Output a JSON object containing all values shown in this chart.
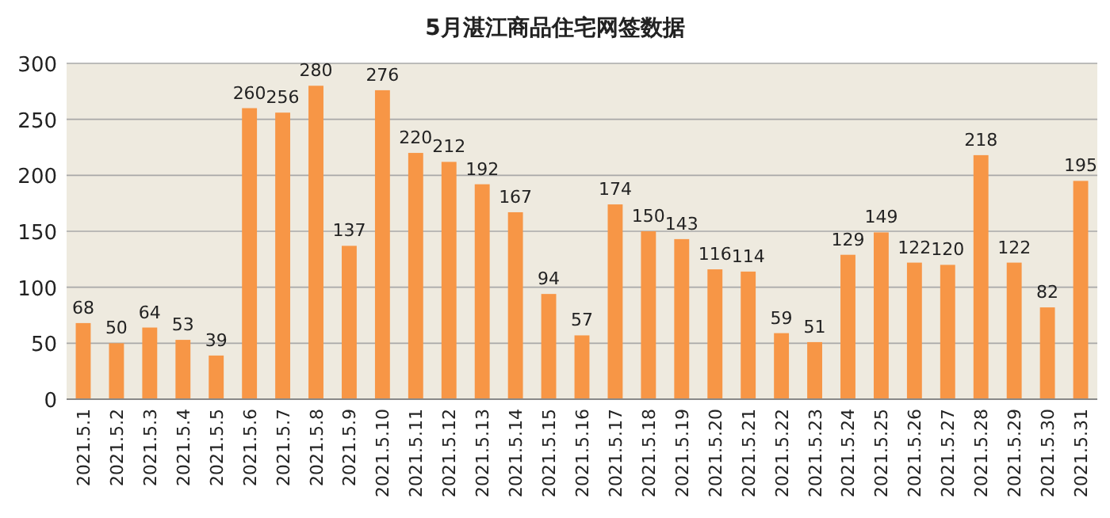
{
  "chart_data": {
    "type": "bar",
    "title": "5月湛江商品住宅网签数据",
    "categories": [
      "2021.5.1",
      "2021.5.2",
      "2021.5.3",
      "2021.5.4",
      "2021.5.5",
      "2021.5.6",
      "2021.5.7",
      "2021.5.8",
      "2021.5.9",
      "2021.5.10",
      "2021.5.11",
      "2021.5.12",
      "2021.5.13",
      "2021.5.14",
      "2021.5.15",
      "2021.5.16",
      "2021.5.17",
      "2021.5.18",
      "2021.5.19",
      "2021.5.20",
      "2021.5.21",
      "2021.5.22",
      "2021.5.23",
      "2021.5.24",
      "2021.5.25",
      "2021.5.26",
      "2021.5.27",
      "2021.5.28",
      "2021.5.29",
      "2021.5.30",
      "2021.5.31"
    ],
    "values": [
      68,
      50,
      64,
      53,
      39,
      260,
      256,
      280,
      137,
      276,
      220,
      212,
      192,
      167,
      94,
      57,
      174,
      150,
      143,
      116,
      114,
      59,
      51,
      129,
      149,
      122,
      120,
      218,
      122,
      82,
      195
    ],
    "color": "#f79646",
    "ylim": [
      0,
      300
    ],
    "yticks": [
      0,
      50,
      100,
      150,
      200,
      250,
      300
    ],
    "grid": "y",
    "data_labels": true
  }
}
